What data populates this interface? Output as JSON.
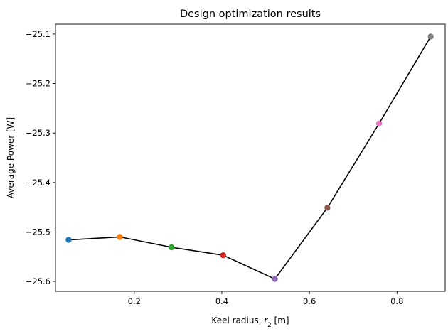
{
  "chart_data": {
    "type": "line",
    "title": "Design optimization results",
    "xlabel_main": "Keel radius, ",
    "xlabel_symbol": "r",
    "xlabel_sub": "2",
    "xlabel_unit": " [m]",
    "ylabel": "Average Power [W]",
    "xlim": [
      0.02,
      0.91
    ],
    "ylim": [
      -25.62,
      -25.08
    ],
    "xticks": [
      0.2,
      0.4,
      0.6,
      0.8
    ],
    "xtick_labels": [
      "0.2",
      "0.4",
      "0.6",
      "0.8"
    ],
    "yticks": [
      -25.6,
      -25.5,
      -25.4,
      -25.3,
      -25.2,
      -25.1
    ],
    "ytick_labels": [
      "−25.6",
      "−25.5",
      "−25.4",
      "−25.3",
      "−25.2",
      "−25.1"
    ],
    "grid": false,
    "line_color": "#000000",
    "x": [
      0.05,
      0.167,
      0.285,
      0.403,
      0.521,
      0.641,
      0.759,
      0.877
    ],
    "y": [
      -25.516,
      -25.51,
      -25.531,
      -25.547,
      -25.595,
      -25.451,
      -25.281,
      -25.105
    ],
    "marker_colors": [
      "#1f77b4",
      "#ff7f0e",
      "#2ca02c",
      "#d62728",
      "#9467bd",
      "#8c564b",
      "#e377c2",
      "#7f7f7f"
    ]
  }
}
